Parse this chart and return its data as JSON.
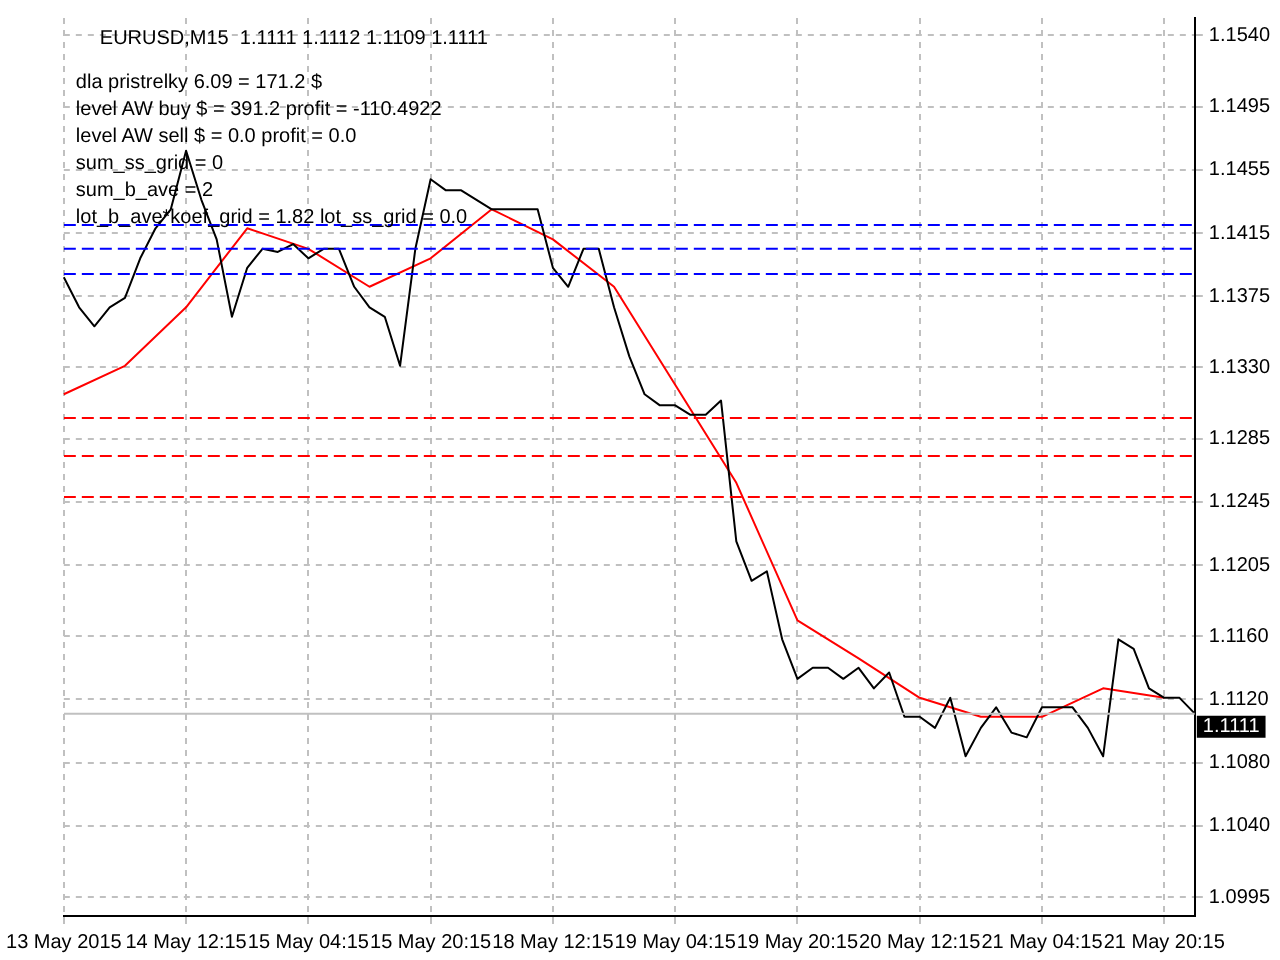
{
  "chart_data": {
    "type": "line",
    "title": "EURUSD,M15  1.1111 1.1112 1.1109 1.1111",
    "categories": [
      "13 May 2015",
      null,
      null,
      null,
      null,
      null,
      null,
      null,
      "14 May 12:15",
      null,
      null,
      null,
      null,
      null,
      null,
      null,
      "15 May 04:15",
      null,
      null,
      null,
      null,
      null,
      null,
      null,
      "15 May 20:15",
      null,
      null,
      null,
      null,
      null,
      null,
      null,
      "18 May 12:15",
      null,
      null,
      null,
      null,
      null,
      null,
      null,
      "19 May 04:15",
      null,
      null,
      null,
      null,
      null,
      null,
      null,
      "19 May 20:15",
      null,
      null,
      null,
      null,
      null,
      null,
      null,
      "20 May 12:15",
      null,
      null,
      null,
      null,
      null,
      null,
      null,
      "21 May 04:15",
      null,
      null,
      null,
      null,
      null,
      null,
      null,
      "21 May 20:15",
      null,
      null
    ],
    "series": [
      {
        "color": "#000000",
        "values": [
          1.1387,
          1.1368,
          1.1356,
          1.1368,
          1.1374,
          1.1399,
          1.1418,
          1.143,
          1.1467,
          1.1436,
          1.1411,
          1.1362,
          1.1393,
          1.1405,
          1.1403,
          1.1408,
          1.1399,
          1.1405,
          1.1405,
          1.1381,
          1.1368,
          1.1362,
          1.1331,
          1.1405,
          1.1449,
          1.1442,
          1.1442,
          1.1436,
          1.143,
          1.143,
          1.143,
          1.143,
          1.1393,
          1.1381,
          1.1405,
          1.1405,
          1.1368,
          1.1337,
          1.1313,
          1.1306,
          1.1306,
          1.13,
          1.13,
          1.1309,
          1.122,
          1.1195,
          1.1201,
          1.1158,
          1.1133,
          1.114,
          1.114,
          1.1133,
          1.114,
          1.1127,
          1.1137,
          1.1109,
          1.1109,
          1.1102,
          1.1121,
          1.1084,
          1.1102,
          1.1115,
          1.1099,
          1.1096,
          1.1115,
          1.1115,
          1.1115,
          1.1102,
          1.1084,
          1.1158,
          1.1152,
          1.1127,
          1.1121,
          1.1121,
          1.1111
        ]
      },
      {
        "color": "#ff0000",
        "values": [
          1.1313,
          null,
          null,
          null,
          1.1331,
          null,
          null,
          null,
          1.1368,
          null,
          null,
          null,
          1.1418,
          null,
          null,
          null,
          1.1405,
          null,
          null,
          null,
          1.1381,
          null,
          null,
          null,
          1.1399,
          null,
          null,
          null,
          1.143,
          null,
          null,
          null,
          1.1411,
          null,
          null,
          null,
          1.1381,
          null,
          null,
          null,
          1.1319,
          null,
          null,
          null,
          1.1257,
          null,
          null,
          null,
          1.117,
          null,
          null,
          null,
          1.1146,
          null,
          null,
          null,
          1.1121,
          null,
          null,
          null,
          1.1109,
          null,
          null,
          null,
          1.1109,
          null,
          null,
          null,
          1.1127,
          null,
          null,
          null,
          1.1121,
          null,
          null
        ]
      }
    ],
    "ylim": [
      1.0983,
      1.1551
    ],
    "yticks": [
      1.0995,
      {
        "value": 1.104,
        "label": "1.1040"
      },
      {
        "value": 1.108,
        "label": "1.1080"
      },
      {
        "value": 1.112,
        "label": "1.1120"
      },
      {
        "value": 1.116,
        "label": "1.1160"
      },
      1.1205,
      1.1245,
      1.1285,
      {
        "value": 1.133,
        "label": "1.1330"
      },
      1.1375,
      1.1415,
      1.1455,
      1.1495,
      {
        "value": 1.154,
        "label": "1.1540"
      }
    ],
    "grid": true,
    "legend": false,
    "marker": "none",
    "ref_lines": [
      {
        "axis": "y",
        "value": 1.1111,
        "label": "1.1111",
        "color": "#c0c0c0",
        "line_style": "solid"
      },
      {
        "axis": "y",
        "value": 1.142,
        "color": "#0000ff",
        "line_style": "dashed"
      },
      {
        "axis": "y",
        "value": 1.1405,
        "color": "#0000ff",
        "line_style": "dashed"
      },
      {
        "axis": "y",
        "value": 1.1389,
        "color": "#0000ff",
        "line_style": "dashed"
      },
      {
        "axis": "y",
        "value": 1.1298,
        "color": "#ff0000",
        "line_style": "dashed"
      },
      {
        "axis": "y",
        "value": 1.1274,
        "color": "#ff0000",
        "line_style": "dashed"
      },
      {
        "axis": "y",
        "value": 1.1248,
        "color": "#ff0000",
        "line_style": "dashed"
      }
    ],
    "annotations": [
      "dla pristrelky 6.09 = 171.2 $",
      "level AW buy $ = 391.2 profit = -110.4922",
      "level AW sell $ = 0.0 profit = 0.0",
      "sum_ss_grid = 0",
      "sum_b_ave = 2",
      "lot_b_ave*koef_grid = 1.82 lot_ss_grid = 0.0"
    ]
  }
}
